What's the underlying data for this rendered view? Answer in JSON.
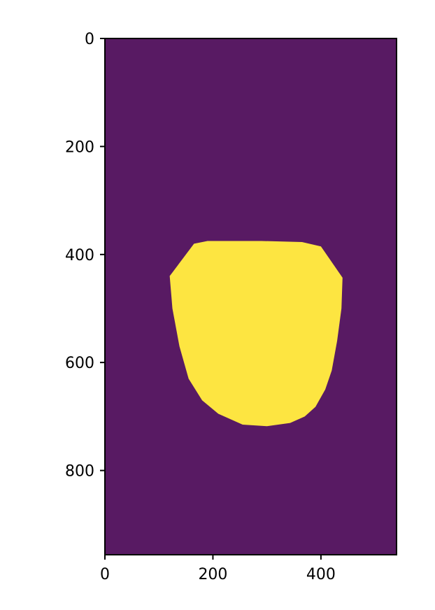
{
  "chart_data": {
    "type": "heatmap",
    "title": "",
    "xlabel": "",
    "ylabel": "",
    "xlim": [
      0,
      540
    ],
    "ylim": [
      956,
      0
    ],
    "x_ticks": [
      0,
      200,
      400
    ],
    "y_ticks": [
      0,
      200,
      400,
      600,
      800
    ],
    "grid": false,
    "colors": {
      "background_value_color": "#581a63",
      "region_value_color": "#fde541",
      "axis_color": "#000000"
    },
    "region": {
      "name": "mask",
      "value": 1,
      "background_value": 0,
      "outline": [
        [
          120,
          440
        ],
        [
          165,
          380
        ],
        [
          190,
          375
        ],
        [
          290,
          375
        ],
        [
          365,
          377
        ],
        [
          400,
          385
        ],
        [
          440,
          443
        ],
        [
          438,
          500
        ],
        [
          430,
          560
        ],
        [
          420,
          615
        ],
        [
          408,
          650
        ],
        [
          390,
          682
        ],
        [
          370,
          700
        ],
        [
          343,
          712
        ],
        [
          300,
          718
        ],
        [
          255,
          715
        ],
        [
          210,
          695
        ],
        [
          180,
          670
        ],
        [
          155,
          630
        ],
        [
          138,
          570
        ],
        [
          125,
          500
        ]
      ]
    }
  }
}
